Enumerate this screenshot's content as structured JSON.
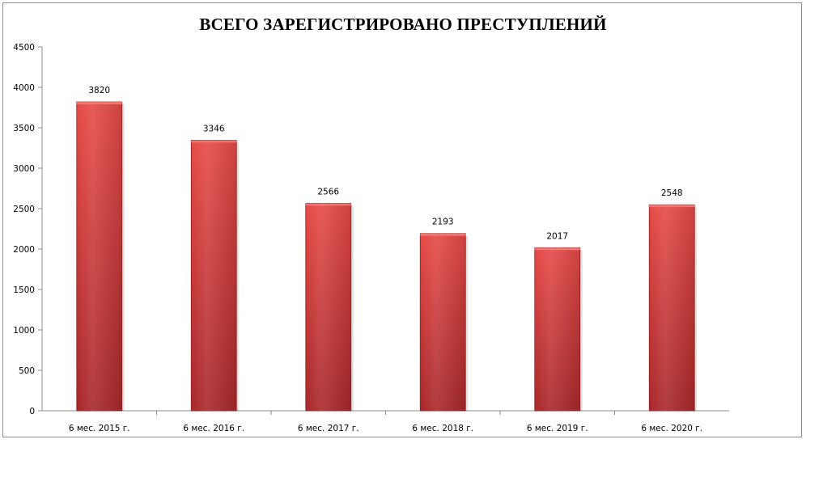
{
  "chart_data": {
    "type": "bar",
    "title": "ВСЕГО ЗАРЕГИСТРИРОВАНО ПРЕСТУПЛЕНИЙ",
    "xlabel": "",
    "ylabel": "",
    "categories": [
      "6 мес. 2015 г.",
      "6 мес. 2016 г.",
      "6 мес. 2017 г.",
      "6 мес. 2018 г.",
      "6 мес. 2019 г.",
      "6 мес. 2020 г."
    ],
    "values": [
      3820,
      3346,
      2566,
      2193,
      2017,
      2548
    ],
    "data_labels": [
      "3820",
      "3346",
      "2566",
      "2193",
      "2017",
      "2548"
    ],
    "ylim": [
      0,
      4500
    ],
    "yticks": [
      0,
      500,
      1000,
      1500,
      2000,
      2500,
      3000,
      3500,
      4000,
      4500
    ],
    "ytick_labels": [
      "0",
      "500",
      "1000",
      "1500",
      "2000",
      "2500",
      "3000",
      "3500",
      "4000",
      "4500"
    ],
    "grid": false,
    "legend": "none",
    "colors": {
      "bar_light": "#e54a47",
      "bar_dark": "#a8282a",
      "bar_edge": "#8e1f1f",
      "axis": "#8c8c8c"
    }
  }
}
